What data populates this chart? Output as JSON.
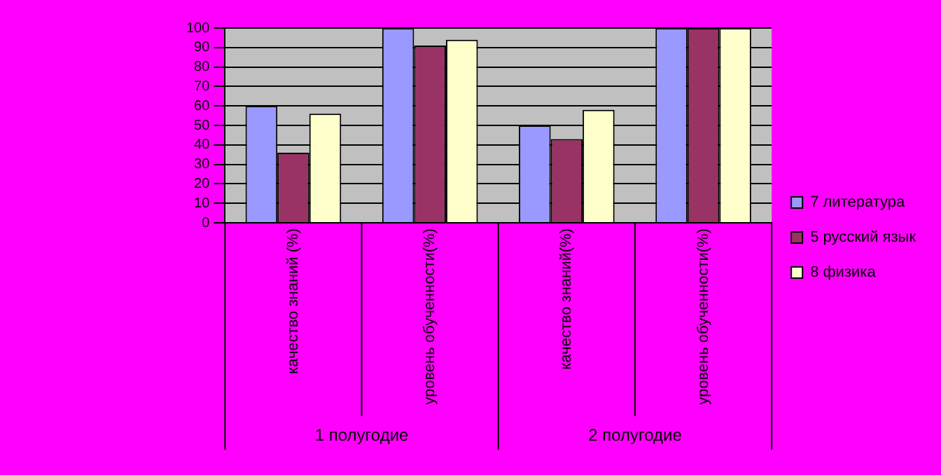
{
  "chart_data": {
    "type": "bar",
    "categories": [
      "качество знаний (%)",
      "уровень обученности(%)",
      "качество знаний(%)",
      "уровень обученности(%)"
    ],
    "series": [
      {
        "name": "7 литература",
        "color": "#9999ff",
        "values": [
          60,
          100,
          50,
          100
        ]
      },
      {
        "name": "5 русский язык",
        "color": "#993366",
        "values": [
          36,
          91,
          43,
          100
        ]
      },
      {
        "name": "8 физика",
        "color": "#ffffcc",
        "values": [
          56,
          94,
          58,
          100
        ]
      }
    ],
    "annotations": [
      "1 полугодие",
      "2 полугодие"
    ],
    "ylim": [
      0,
      100
    ],
    "yticks": [
      0,
      10,
      20,
      30,
      40,
      50,
      60,
      70,
      80,
      90,
      100
    ],
    "grid": "y",
    "legend": "right"
  }
}
